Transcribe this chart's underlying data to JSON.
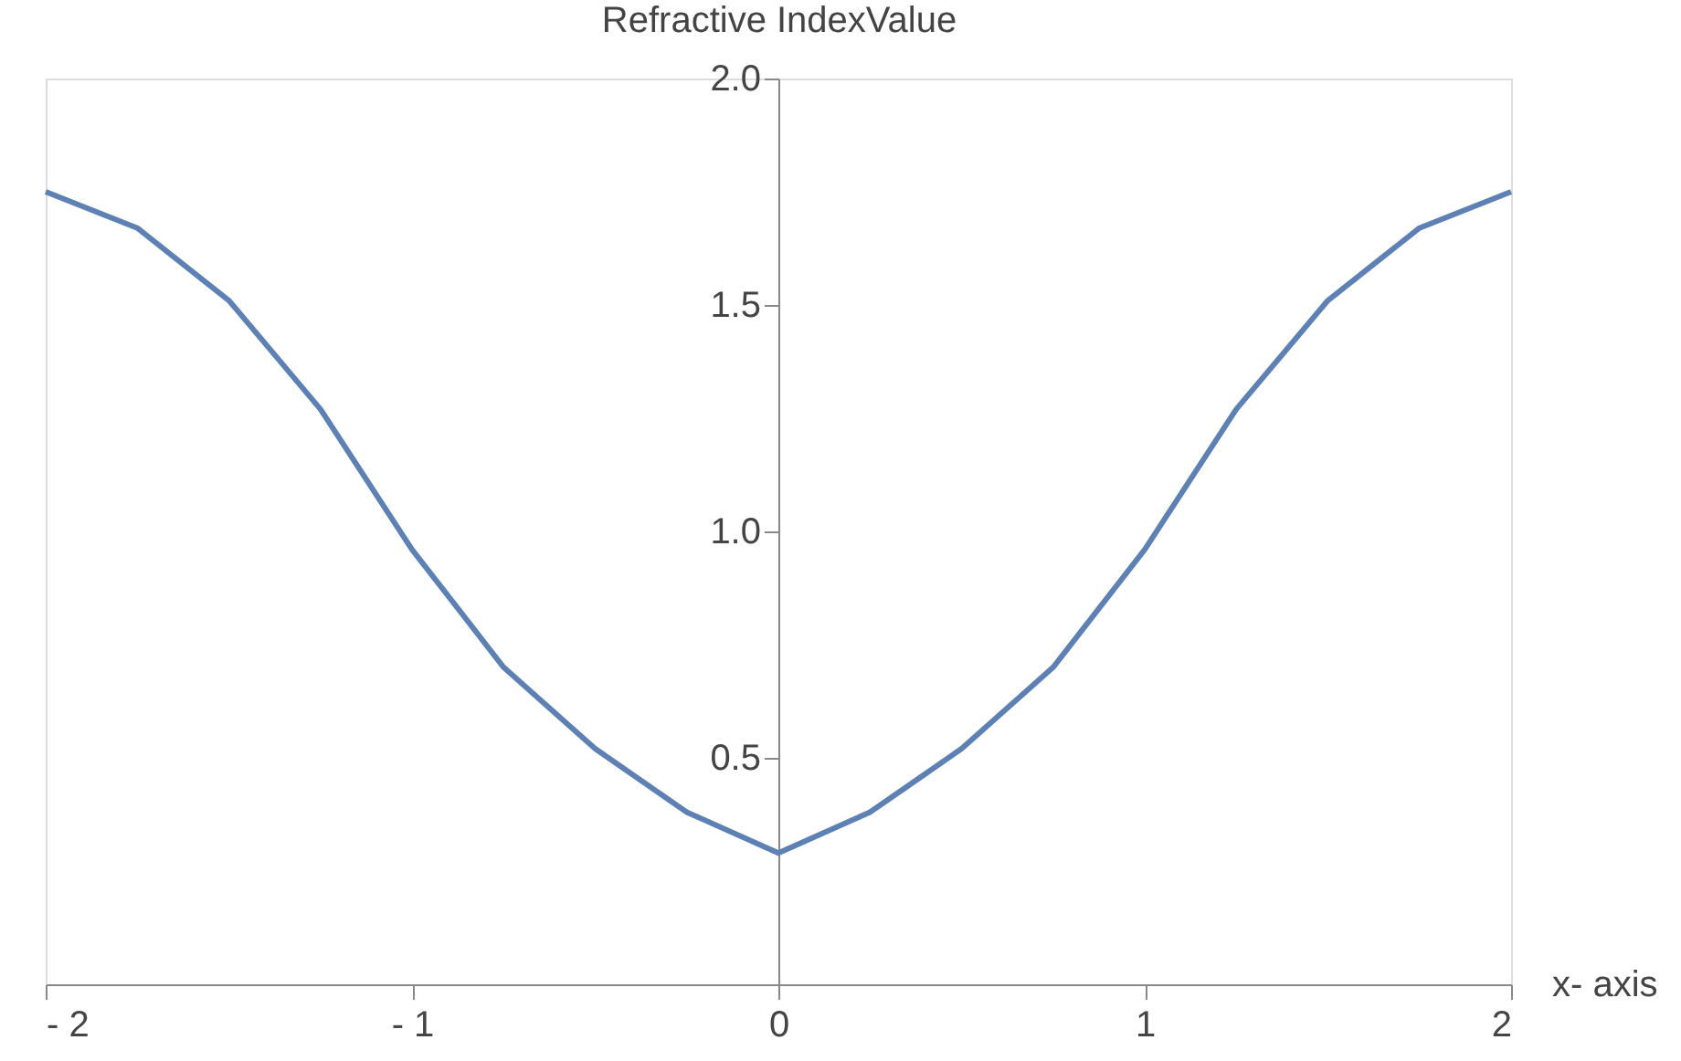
{
  "chart_data": {
    "type": "line",
    "xlabel": "x- axis",
    "ylabel": "Refractive IndexValue",
    "x": [
      -2,
      -1.75,
      -1.5,
      -1.25,
      -1,
      -0.75,
      -0.5,
      -0.25,
      0,
      0.25,
      0.5,
      0.75,
      1,
      1.25,
      1.5,
      1.75,
      2
    ],
    "series": [
      {
        "color": "#5e81b5",
        "values": [
          1.75,
          1.67,
          1.51,
          1.27,
          0.96,
          0.7,
          0.52,
          0.38,
          0.29,
          0.38,
          0.52,
          0.7,
          0.96,
          1.27,
          1.51,
          1.67,
          1.75
        ]
      }
    ],
    "xlim": [
      -2,
      2
    ],
    "ylim": [
      0,
      2
    ],
    "xticks": [
      {
        "value": -2,
        "label": "- 2"
      },
      {
        "value": -1,
        "label": "- 1"
      },
      0,
      1,
      2
    ],
    "yticks": [
      0.5,
      {
        "value": 1,
        "label": "1.0"
      },
      1.5,
      {
        "value": 2,
        "label": "2.0"
      }
    ],
    "grid": false,
    "legend": false,
    "marker": "none",
    "line_style": "solid"
  }
}
